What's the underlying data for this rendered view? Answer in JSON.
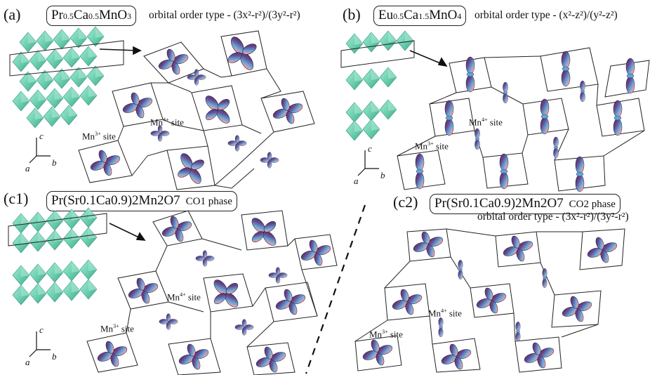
{
  "panels": [
    {
      "id": "a",
      "label": "(a)",
      "formula_main": "Pr",
      "formula_sub1": "0.5",
      "formula_mid": "Ca",
      "formula_sub2": "0.5",
      "formula_end": "MnO",
      "formula_sub3": "3",
      "otype": "orbital order type - (3x²-r²)/(3y²-r²)",
      "mn4": "Mn4+ site",
      "mn3": "Mn3+ site"
    },
    {
      "id": "b",
      "label": "(b)",
      "formula_main": "Eu",
      "formula_sub1": "0.5",
      "formula_mid": "Ca",
      "formula_sub2": "1.5",
      "formula_end": "MnO",
      "formula_sub3": "4",
      "otype": "orbital order type - (x²-z²)/(y²-z²)",
      "mn4": "Mn4+ site",
      "mn3": "Mn3+ site"
    },
    {
      "id": "c1",
      "label": "(c1)",
      "formula_text": "Pr(Sr0.1Ca0.9)2Mn2O7",
      "phase": "CO1 phase",
      "mn4": "Mn4+ site",
      "mn3": "Mn3+ site"
    },
    {
      "id": "c2",
      "label": "(c2)",
      "formula_text": "Pr(Sr0.1Ca0.9)2Mn2O7",
      "phase": "CO2 phase",
      "otype": "orbital order type - (3x²-r²)/(3y²-r²)",
      "mn4": "Mn4+ site",
      "mn3": "Mn3+ site"
    }
  ],
  "axes": {
    "c": "c",
    "a": "a",
    "b": "b"
  },
  "colors": {
    "octahedra": "#6fd1b4",
    "octahedra_dark": "#4fb896",
    "lobe_purple": "#5b3f7a",
    "lobe_blue": "#4d8fc4",
    "lobe_pink": "#d98fa0",
    "lobe_orange": "#e0a060",
    "ink": "#222222"
  }
}
